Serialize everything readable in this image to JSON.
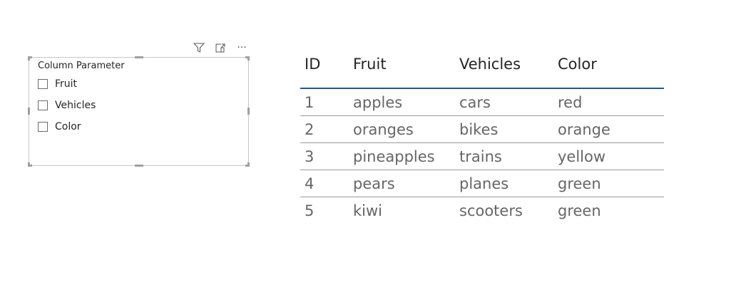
{
  "slicer": {
    "title": "Column Parameter",
    "items": [
      {
        "label": "Fruit",
        "checked": false
      },
      {
        "label": "Vehicles",
        "checked": false
      },
      {
        "label": "Color",
        "checked": false
      }
    ],
    "header_icons": [
      "filter-icon",
      "focus-mode-icon",
      "more-options-icon"
    ]
  },
  "table": {
    "columns": [
      "ID",
      "Fruit",
      "Vehicles",
      "Color"
    ],
    "rows": [
      [
        "1",
        "apples",
        "cars",
        "red"
      ],
      [
        "2",
        "oranges",
        "bikes",
        "orange"
      ],
      [
        "3",
        "pineapples",
        "trains",
        "yellow"
      ],
      [
        "4",
        "pears",
        "planes",
        "green"
      ],
      [
        "5",
        "kiwi",
        "scooters",
        "green"
      ]
    ],
    "accent": "#1f5a8e"
  }
}
